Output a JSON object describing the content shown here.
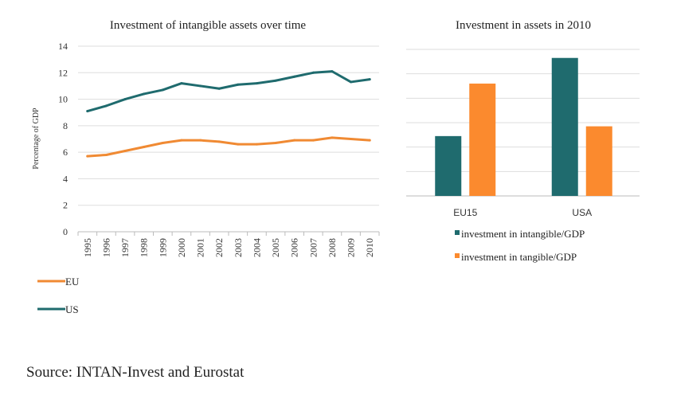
{
  "chart_data": [
    {
      "type": "line",
      "title": "Investment of intangible assets over time",
      "ylabel": "Percentage of GDP",
      "xlabel": "",
      "ylim": [
        0,
        14
      ],
      "yticks": [
        "0",
        "2",
        "4",
        "6",
        "8",
        "10",
        "12",
        "14"
      ],
      "x": [
        "1995",
        "1996",
        "1997",
        "1998",
        "1999",
        "2000",
        "2001",
        "2002",
        "2003",
        "2004",
        "2005",
        "2006",
        "2007",
        "2008",
        "2009",
        "2010"
      ],
      "series": [
        {
          "name": "EU",
          "color": "#f08a33",
          "values": [
            5.7,
            5.8,
            6.1,
            6.4,
            6.7,
            6.9,
            6.9,
            6.8,
            6.6,
            6.6,
            6.7,
            6.9,
            6.9,
            7.1,
            7.0,
            6.9
          ]
        },
        {
          "name": "US",
          "color": "#1f6b6e",
          "values": [
            9.1,
            9.5,
            10.0,
            10.4,
            10.7,
            11.2,
            11.0,
            10.8,
            11.1,
            11.2,
            11.4,
            11.7,
            12.0,
            12.1,
            11.3,
            11.5
          ]
        }
      ],
      "grid": true,
      "legend": "bottom-left"
    },
    {
      "type": "bar",
      "title": "Investment in assets in 2010",
      "categories": [
        "EU15",
        "USA"
      ],
      "ylim": [
        0,
        12
      ],
      "series": [
        {
          "name": "investment in intangible/GDP",
          "color": "#1f6b6e",
          "values": [
            4.9,
            11.3
          ]
        },
        {
          "name": "investment in tangible/GDP",
          "color": "#fb8a2e",
          "values": [
            9.2,
            5.7
          ]
        }
      ],
      "grid": true,
      "legend": "bottom"
    }
  ],
  "source": "Source: INTAN-Invest and Eurostat"
}
